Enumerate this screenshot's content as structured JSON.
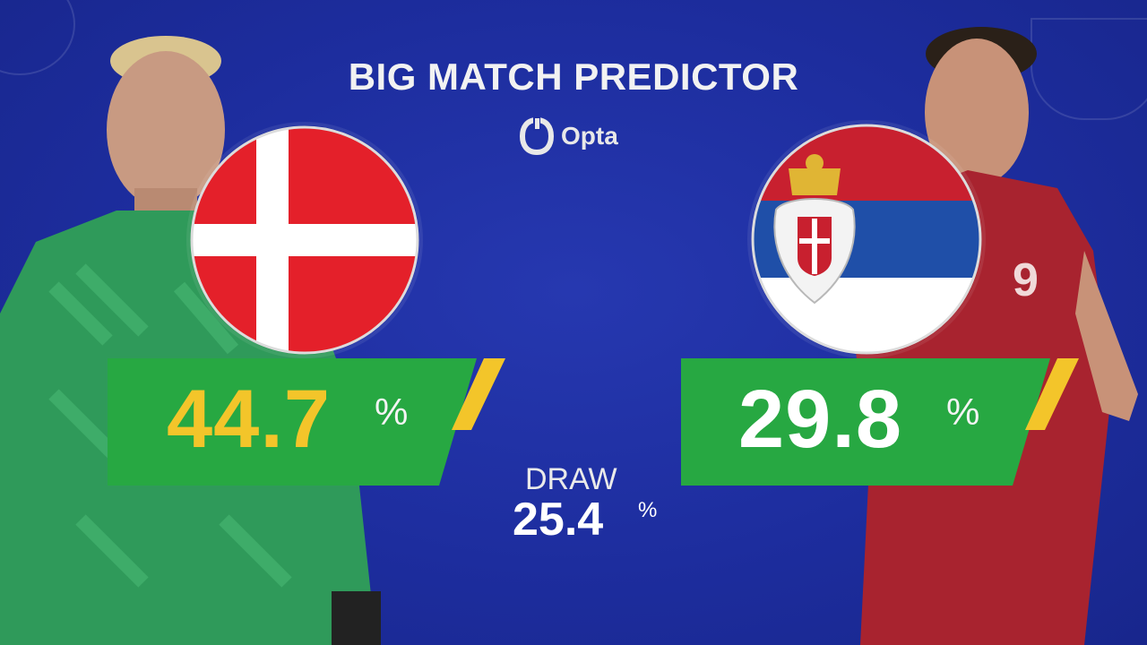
{
  "header": {
    "title": "BIG MATCH PREDICTOR",
    "brand": "Opta"
  },
  "teams": {
    "home": {
      "flag": "denmark-flag",
      "win_pct": "44.7",
      "pct_sign": "%"
    },
    "away": {
      "flag": "serbia-flag",
      "win_pct": "29.8",
      "pct_sign": "%"
    }
  },
  "draw": {
    "label": "DRAW",
    "pct": "25.4",
    "pct_sign": "%"
  },
  "colors": {
    "background": "#1d2d9e",
    "box_green": "#27a842",
    "accent_yellow": "#f3c52a",
    "denmark_red": "#e4202a",
    "serbia_red": "#c8202f",
    "serbia_blue": "#1f4fa8"
  }
}
